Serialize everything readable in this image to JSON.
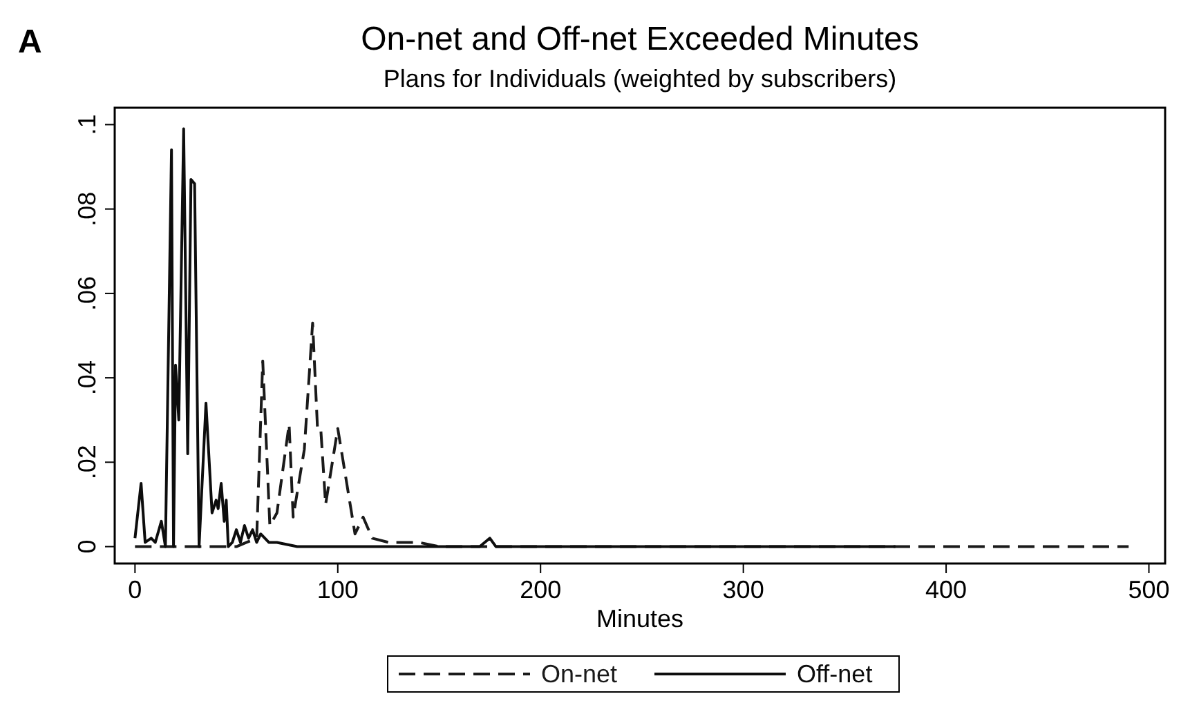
{
  "chart_data": {
    "type": "line",
    "title": "On-net and Off-net Exceeded Minutes",
    "subtitle": "Plans for Individuals (weighted by subscribers)",
    "annotations": [
      "A"
    ],
    "xlabel": "Minutes",
    "xlim": [
      -10,
      508
    ],
    "xticks": [
      0,
      100,
      200,
      300,
      400,
      500
    ],
    "ylim": [
      -0.004,
      0.104
    ],
    "yticks": [
      0,
      {
        "value": 0.02,
        "label": ".02"
      },
      {
        "value": 0.04,
        "label": ".04"
      },
      {
        "value": 0.06,
        "label": ".06"
      },
      {
        "value": 0.08,
        "label": ".08"
      },
      {
        "value": 0.1,
        "label": ".1"
      }
    ],
    "grid": false,
    "legend": "bottom",
    "marker": "none",
    "series": [
      {
        "name": "On-net",
        "color": "#1a1a1a",
        "line_style": "dashed",
        "x": [
          0,
          10,
          20,
          30,
          40,
          50,
          55,
          60,
          63,
          66.5,
          70,
          76,
          78,
          83.5,
          87.6,
          90,
          91.6,
          94,
          100,
          108.5,
          112.5,
          117,
          125,
          140,
          150,
          200,
          300,
          400,
          490
        ],
        "values": [
          0,
          0,
          0,
          0,
          0,
          0,
          0.001,
          0.002,
          0.044,
          0.005,
          0.008,
          0.029,
          0.007,
          0.023,
          0.053,
          0.028,
          0.028,
          0.01,
          0.028,
          0.003,
          0.007,
          0.002,
          0.001,
          0.001,
          0,
          0,
          0,
          0,
          0
        ]
      },
      {
        "name": "Off-net",
        "color": "#0d0d0d",
        "line_style": "solid",
        "x": [
          0,
          3,
          5,
          8,
          10,
          13,
          15,
          18,
          19,
          20,
          21.6,
          24,
          26,
          27.6,
          29.4,
          31.6,
          35,
          38,
          40,
          41,
          42.5,
          44,
          45,
          46,
          48,
          50,
          52,
          54,
          56,
          58,
          60,
          62,
          66,
          70,
          80,
          100,
          150,
          170,
          175,
          178,
          200,
          300,
          375
        ],
        "values": [
          0.002,
          0.015,
          0.001,
          0.002,
          0.001,
          0.006,
          0,
          0.094,
          0,
          0.043,
          0.03,
          0.099,
          0.022,
          0.087,
          0.086,
          0,
          0.034,
          0.008,
          0.011,
          0.009,
          0.015,
          0.006,
          0.011,
          0,
          0.001,
          0.004,
          0.001,
          0.005,
          0.002,
          0.004,
          0.001,
          0.003,
          0.001,
          0.001,
          0,
          0,
          0,
          0,
          0.002,
          0,
          0,
          0,
          0
        ]
      }
    ]
  }
}
